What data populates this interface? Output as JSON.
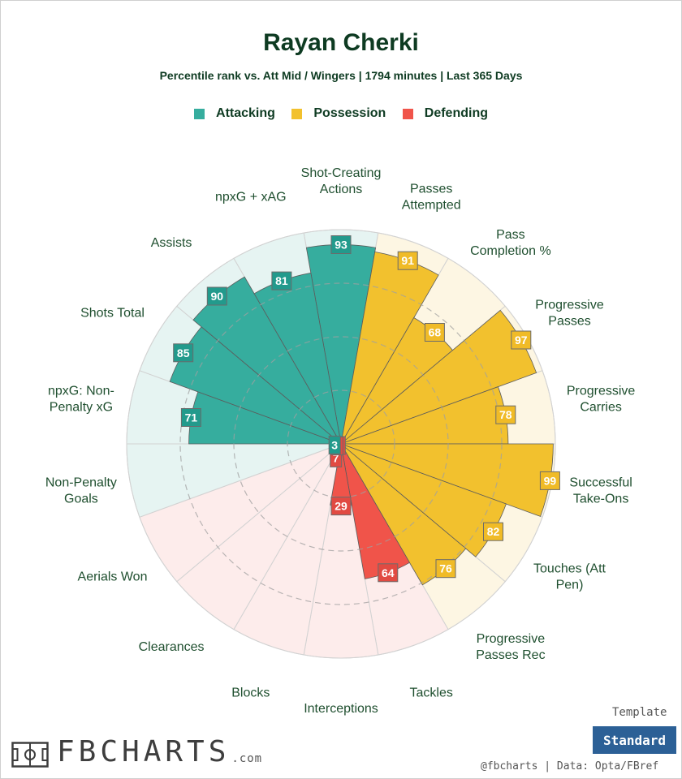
{
  "header": {
    "title": "Rayan Cherki",
    "subtitle": "Percentile rank vs. Att Mid / Wingers | 1794 minutes | Last 365 Days"
  },
  "legend": [
    {
      "label": "Attacking",
      "color": "#36ad9e"
    },
    {
      "label": "Possession",
      "color": "#f2c12e"
    },
    {
      "label": "Defending",
      "color": "#f0544a"
    }
  ],
  "colors": {
    "Attacking": {
      "bar": "#36ad9e",
      "bg": "#e6f4f2",
      "labelBg": "#229a8c"
    },
    "Possession": {
      "bar": "#f2c12e",
      "bg": "#fdf6e3",
      "labelBg": "#f0bb27"
    },
    "Defending": {
      "bar": "#f0544a",
      "bg": "#fdeceb",
      "labelBg": "#e14a42"
    }
  },
  "chart_data": {
    "type": "polar-bar",
    "range": [
      0,
      100
    ],
    "categories": [
      {
        "label": "Shot-Creating Actions",
        "value": 93,
        "group": "Attacking"
      },
      {
        "label": "Passes Attempted",
        "value": 91,
        "group": "Possession"
      },
      {
        "label": "Pass Completion %",
        "value": 68,
        "group": "Possession"
      },
      {
        "label": "Progressive Passes",
        "value": 97,
        "group": "Possession"
      },
      {
        "label": "Progressive Carries",
        "value": 78,
        "group": "Possession"
      },
      {
        "label": "Successful Take-Ons",
        "value": 99,
        "group": "Possession"
      },
      {
        "label": "Touches (Att Pen)",
        "value": 82,
        "group": "Possession"
      },
      {
        "label": "Progressive Passes Rec",
        "value": 76,
        "group": "Possession"
      },
      {
        "label": "Tackles",
        "value": 64,
        "group": "Defending"
      },
      {
        "label": "Interceptions",
        "value": 29,
        "group": "Defending"
      },
      {
        "label": "Blocks",
        "value": 7,
        "group": "Defending"
      },
      {
        "label": "Clearances",
        "value": 1,
        "group": "Defending"
      },
      {
        "label": "Aerials Won",
        "value": 2,
        "group": "Defending"
      },
      {
        "label": "Non-Penalty Goals",
        "value": 3,
        "group": "Attacking"
      },
      {
        "label": "npxG: Non-Penalty xG",
        "value": 71,
        "group": "Attacking"
      },
      {
        "label": "Shots Total",
        "value": 85,
        "group": "Attacking"
      },
      {
        "label": "Assists",
        "value": 90,
        "group": "Attacking"
      },
      {
        "label": "npxG + xAG",
        "value": 81,
        "group": "Attacking"
      }
    ]
  },
  "footer": {
    "brand": "FBCHARTS",
    "brand_suffix": ".com",
    "template_label": "Template",
    "template_button": "Standard",
    "credits": "@fbcharts  |  Data: Opta/FBref"
  }
}
